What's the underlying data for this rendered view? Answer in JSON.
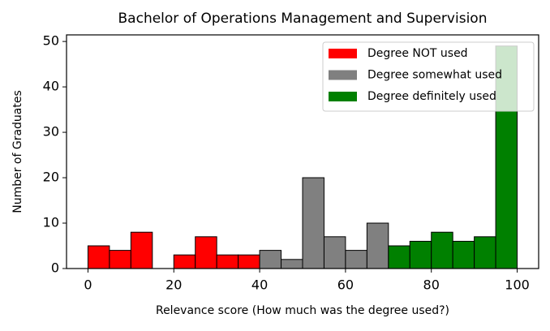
{
  "chart_data": {
    "type": "histogram",
    "title": "Bachelor of Operations Management and Supervision",
    "x_label": "Relevance score (How much was the degree used?)",
    "y_label": "Number of Graduates",
    "series": [
      {
        "name": "Degree NOT used",
        "color": "#ff0000",
        "bins": [
          0,
          5,
          10,
          15,
          20,
          25,
          30,
          35,
          40
        ],
        "values": [
          5,
          4,
          8,
          0,
          3,
          7,
          3,
          3
        ]
      },
      {
        "name": "Degree somewhat used",
        "color": "#808080",
        "bins": [
          40,
          45,
          50,
          55,
          60,
          65,
          70
        ],
        "values": [
          4,
          2,
          20,
          7,
          4,
          10
        ]
      },
      {
        "name": "Degree definitely used",
        "color": "#008000",
        "bins": [
          70,
          75,
          80,
          85,
          90,
          95,
          100
        ],
        "values": [
          5,
          6,
          8,
          6,
          7,
          49
        ]
      }
    ],
    "xlim": [
      -5,
      105
    ],
    "xticks": [
      0,
      20,
      40,
      60,
      80,
      100
    ],
    "ylim": [
      0,
      51.45
    ],
    "yticks": [
      0,
      10,
      20,
      30,
      40,
      50
    ],
    "legend": "upper right"
  }
}
